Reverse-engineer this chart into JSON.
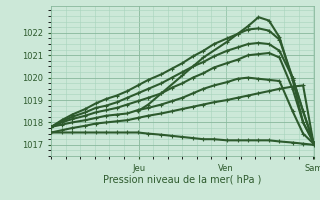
{
  "bg_color": "#cce8d8",
  "grid_color_minor": "#a8d4bc",
  "grid_color_major": "#88b89c",
  "line_color": "#2d5a2d",
  "xlabel": "Pression niveau de la mer( hPa )",
  "xlabel_color": "#2d5a2d",
  "tick_color": "#2d5a2d",
  "ylim": [
    1016.5,
    1023.2
  ],
  "yticks": [
    1017,
    1018,
    1019,
    1020,
    1021,
    1022
  ],
  "day_labels": [
    "Jeu",
    "Ven",
    "Sam"
  ],
  "day_positions": [
    0.333,
    0.667,
    1.0
  ],
  "figsize": [
    3.2,
    2.0
  ],
  "dpi": 100,
  "series": [
    {
      "x": [
        0.0,
        0.04,
        0.08,
        0.13,
        0.17,
        0.21,
        0.25,
        0.29,
        0.33,
        0.37,
        0.42,
        0.46,
        0.5,
        0.54,
        0.58,
        0.62,
        0.67,
        0.71,
        0.75,
        0.79,
        0.83,
        0.87,
        0.92,
        0.96,
        1.0
      ],
      "y": [
        1017.55,
        1017.55,
        1017.55,
        1017.55,
        1017.55,
        1017.55,
        1017.55,
        1017.55,
        1017.55,
        1017.5,
        1017.45,
        1017.4,
        1017.35,
        1017.3,
        1017.25,
        1017.25,
        1017.2,
        1017.2,
        1017.2,
        1017.2,
        1017.2,
        1017.15,
        1017.1,
        1017.05,
        1017.0
      ],
      "marker": "+",
      "lw": 1.5,
      "ms": 3.5
    },
    {
      "x": [
        0.0,
        0.04,
        0.08,
        0.13,
        0.17,
        0.21,
        0.25,
        0.29,
        0.33,
        0.37,
        0.42,
        0.46,
        0.5,
        0.54,
        0.58,
        0.62,
        0.67,
        0.71,
        0.75,
        0.79,
        0.83,
        0.87,
        0.92,
        0.96,
        1.0
      ],
      "y": [
        1017.55,
        1017.65,
        1017.75,
        1017.85,
        1017.95,
        1018.0,
        1018.05,
        1018.1,
        1018.2,
        1018.3,
        1018.4,
        1018.5,
        1018.6,
        1018.7,
        1018.8,
        1018.9,
        1019.0,
        1019.1,
        1019.2,
        1019.3,
        1019.4,
        1019.5,
        1019.6,
        1019.65,
        1017.05
      ],
      "marker": "+",
      "lw": 1.5,
      "ms": 3.5
    },
    {
      "x": [
        0.0,
        0.04,
        0.08,
        0.13,
        0.17,
        0.21,
        0.25,
        0.29,
        0.33,
        0.37,
        0.42,
        0.46,
        0.5,
        0.54,
        0.58,
        0.62,
        0.67,
        0.71,
        0.75,
        0.79,
        0.83,
        0.87,
        0.92,
        0.96,
        1.0
      ],
      "y": [
        1017.8,
        1017.9,
        1018.0,
        1018.1,
        1018.2,
        1018.3,
        1018.35,
        1018.4,
        1018.55,
        1018.65,
        1018.8,
        1018.95,
        1019.1,
        1019.3,
        1019.5,
        1019.65,
        1019.8,
        1019.95,
        1020.0,
        1019.95,
        1019.9,
        1019.85,
        1018.5,
        1017.5,
        1017.05
      ],
      "marker": "+",
      "lw": 1.5,
      "ms": 3.5
    },
    {
      "x": [
        0.0,
        0.04,
        0.08,
        0.13,
        0.17,
        0.21,
        0.25,
        0.29,
        0.33,
        0.37,
        0.42,
        0.46,
        0.5,
        0.54,
        0.58,
        0.62,
        0.67,
        0.71,
        0.75,
        0.79,
        0.83,
        0.87,
        0.92,
        0.96,
        1.0
      ],
      "y": [
        1017.8,
        1018.0,
        1018.15,
        1018.3,
        1018.45,
        1018.55,
        1018.65,
        1018.8,
        1018.95,
        1019.1,
        1019.3,
        1019.55,
        1019.75,
        1020.0,
        1020.2,
        1020.45,
        1020.65,
        1020.8,
        1021.0,
        1021.05,
        1021.1,
        1020.9,
        1019.5,
        1018.0,
        1017.1
      ],
      "marker": "+",
      "lw": 1.5,
      "ms": 3.5
    },
    {
      "x": [
        0.0,
        0.04,
        0.08,
        0.13,
        0.17,
        0.21,
        0.25,
        0.29,
        0.33,
        0.37,
        0.42,
        0.46,
        0.5,
        0.54,
        0.58,
        0.62,
        0.67,
        0.71,
        0.75,
        0.79,
        0.83,
        0.87,
        0.92,
        0.96,
        1.0
      ],
      "y": [
        1017.8,
        1018.05,
        1018.25,
        1018.45,
        1018.65,
        1018.75,
        1018.9,
        1019.1,
        1019.3,
        1019.5,
        1019.75,
        1020.0,
        1020.25,
        1020.5,
        1020.7,
        1020.95,
        1021.2,
        1021.35,
        1021.5,
        1021.55,
        1021.5,
        1021.2,
        1020.0,
        1018.5,
        1017.1
      ],
      "marker": "+",
      "lw": 1.5,
      "ms": 3.5
    },
    {
      "x": [
        0.0,
        0.04,
        0.08,
        0.13,
        0.17,
        0.21,
        0.25,
        0.29,
        0.33,
        0.37,
        0.42,
        0.46,
        0.5,
        0.54,
        0.58,
        0.62,
        0.67,
        0.71,
        0.75,
        0.79,
        0.83,
        0.87,
        0.92,
        0.96,
        1.0
      ],
      "y": [
        1017.8,
        1018.1,
        1018.35,
        1018.6,
        1018.85,
        1019.05,
        1019.2,
        1019.4,
        1019.65,
        1019.9,
        1020.15,
        1020.4,
        1020.65,
        1020.95,
        1021.2,
        1021.5,
        1021.75,
        1021.95,
        1022.15,
        1022.2,
        1022.1,
        1021.7,
        1020.0,
        1018.5,
        1017.1
      ],
      "marker": "+",
      "lw": 1.5,
      "ms": 3.5
    },
    {
      "x": [
        0.33,
        0.37,
        0.42,
        0.5,
        0.58,
        0.67,
        0.71,
        0.75,
        0.79,
        0.83,
        0.87,
        0.92,
        0.96,
        1.0
      ],
      "y": [
        1018.5,
        1018.8,
        1019.3,
        1020.1,
        1020.9,
        1021.6,
        1021.95,
        1022.3,
        1022.7,
        1022.55,
        1021.8,
        1019.9,
        1018.0,
        1017.1
      ],
      "marker": "+",
      "lw": 1.5,
      "ms": 3.5
    }
  ]
}
